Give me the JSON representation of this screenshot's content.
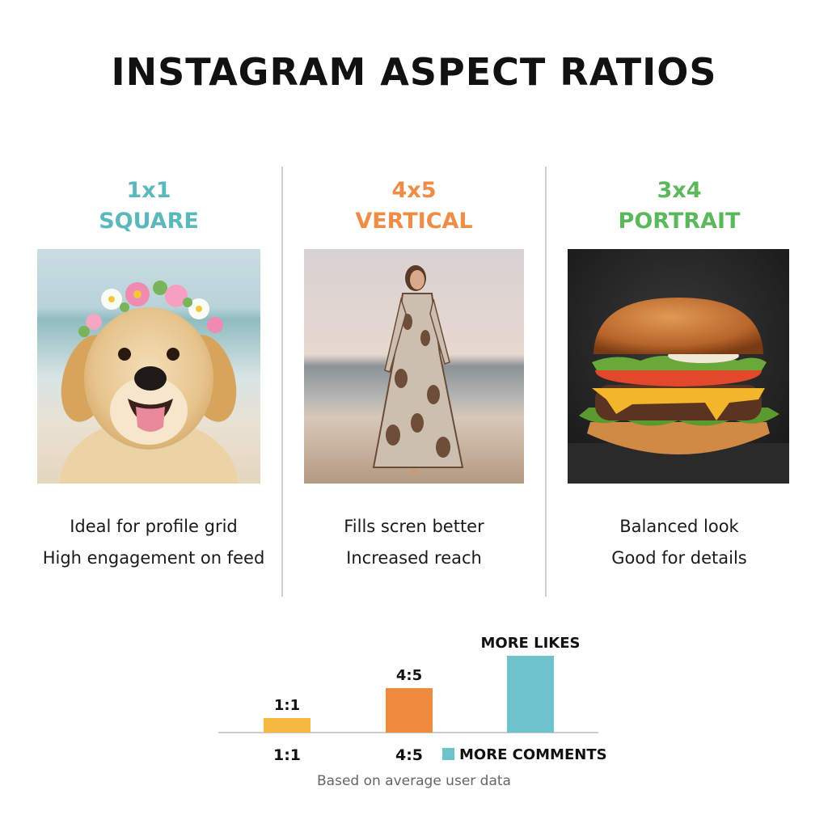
{
  "title": "INSTAGRAM ASPECT RATIOS",
  "columns": [
    {
      "ratio": "1x1",
      "label": "SQUARE",
      "color": "#5bb8bd",
      "desc1": "Ideal for profile grid",
      "desc2": "High engagement on feed",
      "image": "golden-retriever-with-flower-crown-on-beach"
    },
    {
      "ratio": "4x5",
      "label": "VERTICAL",
      "color": "#ef8c45",
      "desc1": "Fills scren better",
      "desc2": "Increased reach",
      "image": "woman-in-floral-dress-on-beach"
    },
    {
      "ratio": "3x4",
      "label": "PORTRAIT",
      "color": "#5cb85c",
      "desc1": "Balanced look",
      "desc2": "Good for details",
      "image": "cheeseburger-on-dark-background"
    }
  ],
  "chart_data": {
    "type": "bar",
    "categories": [
      "1:1",
      "4:5",
      ""
    ],
    "values": [
      18,
      55,
      95
    ],
    "bar_labels": [
      "1:1",
      "4:5",
      "MORE LIKES"
    ],
    "colors": [
      "#f5b942",
      "#f08a3c",
      "#6cc3cb"
    ],
    "legend": {
      "label": "MORE COMMENTS",
      "color": "#6cc3cb"
    },
    "ylim": [
      0,
      100
    ]
  },
  "footnote": "Based on average user data"
}
